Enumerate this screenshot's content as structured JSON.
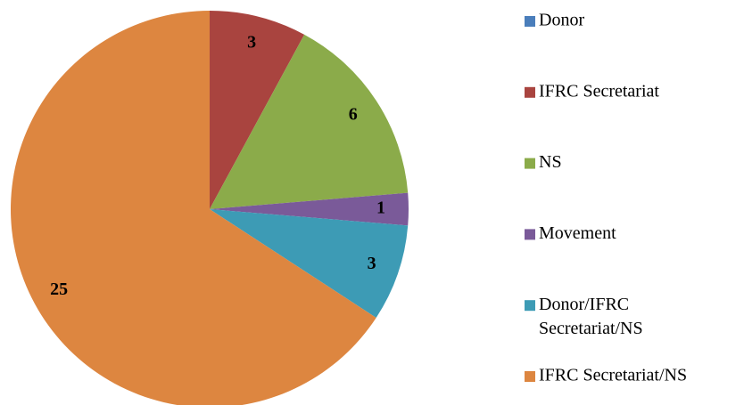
{
  "chart_data": {
    "type": "pie",
    "categories": [
      "Donor",
      "IFRC Secretariat",
      "NS",
      "Movement",
      "Donor/IFRC Secretariat/NS",
      "IFRC Secretariat/NS"
    ],
    "values": [
      0,
      3,
      6,
      1,
      3,
      25
    ],
    "colors": [
      "#4a7ebb",
      "#a9443f",
      "#8bab4a",
      "#7a5a99",
      "#3d9bb5",
      "#dd8640"
    ],
    "legend": "right"
  }
}
